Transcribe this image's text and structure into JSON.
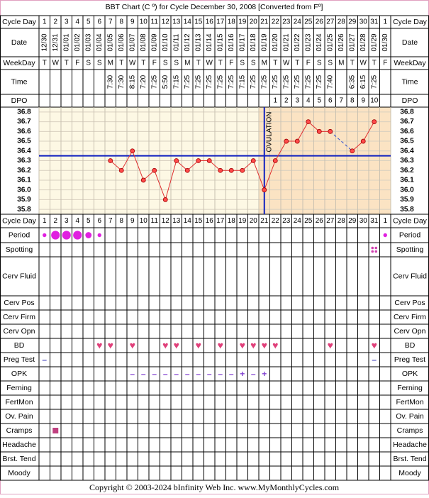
{
  "chart_data": {
    "type": "line",
    "title": "BBT Chart (C º) for Cycle December 30, 2008  [Converted from Fº]",
    "labels": {
      "cycle_day": "Cycle Day",
      "date": "Date",
      "weekday": "WeekDay",
      "time": "Time",
      "dpo": "DPO"
    },
    "x": [
      1,
      2,
      3,
      4,
      5,
      6,
      7,
      8,
      9,
      10,
      11,
      12,
      13,
      14,
      15,
      16,
      17,
      18,
      19,
      20,
      21,
      22,
      23,
      24,
      25,
      26,
      27,
      28,
      29,
      30,
      31,
      1
    ],
    "dates": [
      "12/30",
      "12/31",
      "01/01",
      "01/02",
      "01/03",
      "01/04",
      "01/05",
      "01/06",
      "01/07",
      "01/08",
      "01/09",
      "01/10",
      "01/11",
      "01/12",
      "01/13",
      "01/14",
      "01/15",
      "01/16",
      "01/17",
      "01/18",
      "01/19",
      "01/20",
      "01/21",
      "01/22",
      "01/23",
      "01/24",
      "01/25",
      "01/26",
      "01/27",
      "01/28",
      "01/29",
      "01/30"
    ],
    "weekdays": [
      "T",
      "W",
      "T",
      "F",
      "S",
      "S",
      "M",
      "T",
      "W",
      "T",
      "F",
      "S",
      "S",
      "M",
      "T",
      "W",
      "T",
      "F",
      "S",
      "S",
      "M",
      "T",
      "W",
      "T",
      "F",
      "S",
      "S",
      "M",
      "T",
      "W",
      "T",
      "F"
    ],
    "times": [
      null,
      null,
      null,
      null,
      null,
      null,
      "7:30",
      "7:30",
      "8:15",
      "7:20",
      "7:25",
      "5:50",
      "7:15",
      "7:25",
      "7:25",
      "7:25",
      "7:25",
      "7:25",
      "7:15",
      "7:25",
      "7:25",
      "7:25",
      "7:25",
      "7:25",
      "7:25",
      "7:25",
      "7:40",
      null,
      "6:35",
      "6:15",
      "7:25",
      null
    ],
    "dpo": [
      null,
      null,
      null,
      null,
      null,
      null,
      null,
      null,
      null,
      null,
      null,
      null,
      null,
      null,
      null,
      null,
      null,
      null,
      null,
      null,
      null,
      1,
      2,
      3,
      4,
      5,
      6,
      7,
      8,
      9,
      10,
      null
    ],
    "values": [
      null,
      null,
      null,
      null,
      null,
      null,
      36.3,
      36.2,
      36.4,
      36.1,
      36.2,
      35.9,
      36.3,
      36.2,
      36.3,
      36.3,
      36.2,
      36.2,
      36.2,
      36.3,
      36.0,
      36.3,
      36.5,
      36.5,
      36.7,
      36.6,
      36.6,
      null,
      36.4,
      36.5,
      36.7,
      null
    ],
    "color": "#e03030",
    "ylim": [
      35.75,
      36.85
    ],
    "yticks": [
      36.8,
      36.7,
      36.6,
      36.5,
      36.4,
      36.3,
      36.2,
      36.1,
      {
        "value": 36.0,
        "label": "36.0"
      },
      35.9,
      35.8
    ],
    "coverline": 36.35,
    "ovulation_day": 21,
    "ovulation_label": "OVULATION",
    "grid": true
  },
  "tracking": [
    {
      "label": "Period",
      "shape": "dot",
      "color": "#e020e0",
      "marks": [
        1,
        3,
        3,
        3,
        2,
        1,
        null,
        null,
        null,
        null,
        null,
        null,
        null,
        null,
        null,
        null,
        null,
        null,
        null,
        null,
        null,
        null,
        null,
        null,
        null,
        null,
        null,
        null,
        null,
        null,
        null,
        1
      ]
    },
    {
      "label": "Spotting",
      "shape": "spots",
      "color": "#d040b0",
      "marks": [
        null,
        null,
        null,
        null,
        null,
        null,
        null,
        null,
        null,
        null,
        null,
        null,
        null,
        null,
        null,
        null,
        null,
        null,
        null,
        null,
        null,
        null,
        null,
        null,
        null,
        null,
        null,
        null,
        null,
        null,
        1,
        null
      ]
    },
    {
      "label": "Cerv Fluid"
    },
    {
      "label": "Cerv Pos"
    },
    {
      "label": "Cerv Firm"
    },
    {
      "label": "Cerv Opn"
    },
    {
      "label": "BD",
      "color": "#e0407a",
      "marks": [
        null,
        null,
        null,
        null,
        null,
        "♥",
        "♥",
        null,
        "♥",
        null,
        null,
        "♥",
        "♥",
        null,
        "♥",
        null,
        "♥",
        null,
        "♥",
        "♥",
        "♥",
        "♥",
        null,
        null,
        null,
        null,
        "♥",
        null,
        null,
        null,
        "♥",
        null
      ]
    },
    {
      "label": "Preg Test",
      "color": "#5050c0",
      "marks": [
        "–",
        null,
        null,
        null,
        null,
        null,
        null,
        null,
        null,
        null,
        null,
        null,
        null,
        null,
        null,
        null,
        null,
        null,
        null,
        null,
        null,
        null,
        null,
        null,
        null,
        null,
        null,
        null,
        null,
        null,
        "–",
        null
      ]
    },
    {
      "label": "OPK",
      "color": "#8040d0",
      "marks": [
        null,
        null,
        null,
        null,
        null,
        null,
        null,
        null,
        "–",
        "–",
        "–",
        "–",
        "–",
        "–",
        "–",
        "–",
        "–",
        "–",
        "+",
        "–",
        "+",
        null,
        null,
        null,
        null,
        null,
        null,
        null,
        null,
        null,
        null,
        null
      ]
    },
    {
      "label": "Ferning"
    },
    {
      "label": "FertMon"
    },
    {
      "label": "Ov. Pain"
    },
    {
      "label": "Cramps",
      "shape": "square",
      "color": "#c04080",
      "marks": [
        null,
        1,
        null,
        null,
        null,
        null,
        null,
        null,
        null,
        null,
        null,
        null,
        null,
        null,
        null,
        null,
        null,
        null,
        null,
        null,
        null,
        null,
        null,
        null,
        null,
        null,
        null,
        null,
        null,
        null,
        null,
        null
      ]
    },
    {
      "label": "Headache"
    },
    {
      "label": "Brst. Tend"
    },
    {
      "label": "Moody"
    }
  ],
  "footer": "Copyright © 2003-2024 bInfinity Web Inc.     www.MyMonthlyCycles.com"
}
